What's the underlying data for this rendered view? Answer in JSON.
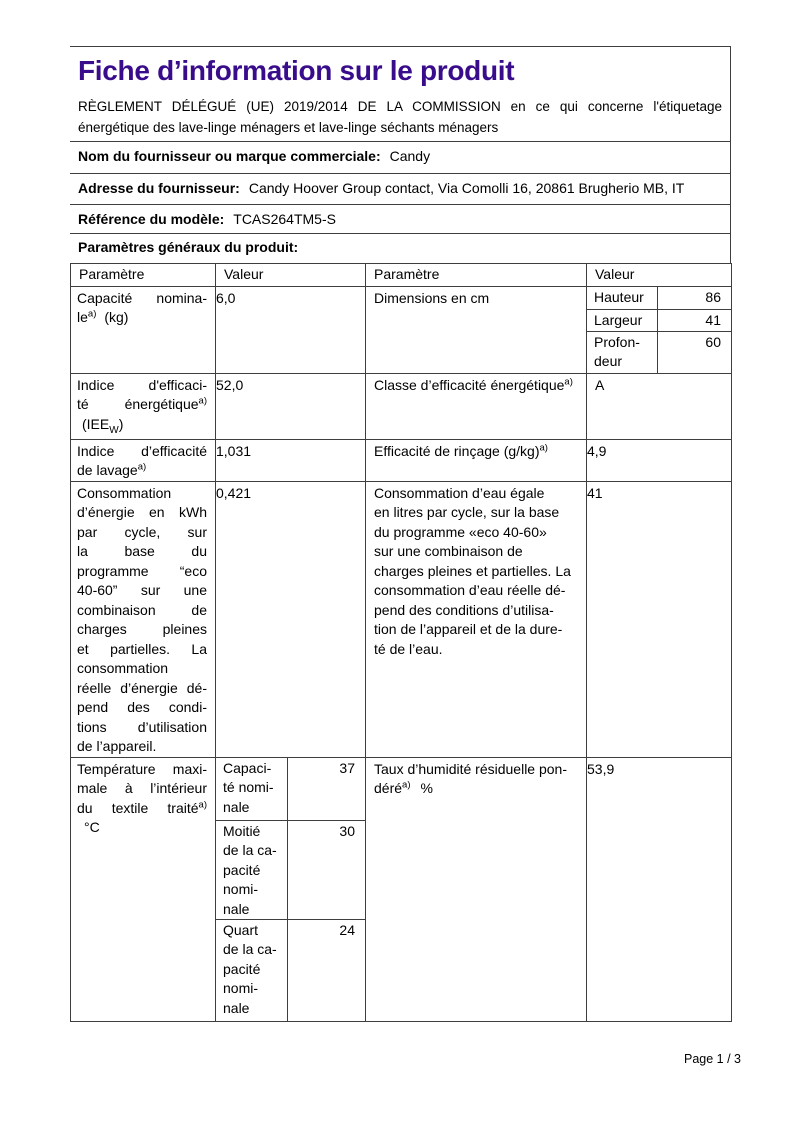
{
  "doc": {
    "title": "Fiche d’information sur le produit",
    "regulation_lines": [
      "RÈGLEMENT DÉLÉGUÉ (UE) 2019/2014 DE LA COMMISSION en ce qui concerne l'étiquetage",
      "énergétique des lave-linge ménagers et lave-linge séchants ménagers"
    ],
    "accent_color": "#390c8b",
    "page_number": "Page 1 / 3"
  },
  "supplier": {
    "name_label": "Nom du fournisseur ou marque commerciale:",
    "name_value": "Candy",
    "address_label": "Adresse du fournisseur:",
    "address_value": "Candy Hoover Group contact, Via Comolli 16, 20861 Brugherio MB, IT",
    "model_label": "Référence du modèle:",
    "model_value": "TCAS264TM5-S",
    "section_title": "Paramètres généraux du produit:"
  },
  "table": {
    "headers": [
      "Paramètre",
      "Valeur",
      "Paramètre",
      "Valeur"
    ],
    "capacity": {
      "l1": "Capacité nomina-",
      "l2_text": "le",
      "l2_sup": "a)",
      "l2_unit": "(kg)",
      "value": "6,0"
    },
    "dimensions": {
      "label": "Dimensions en cm",
      "height_label": "Hauteur",
      "height_value": "86",
      "width_label": "Largeur",
      "width_value": "41",
      "depth_label_lines": [
        "Profon-",
        "deur"
      ],
      "depth_value": "60"
    },
    "eei": {
      "l1": "Indice d'efficaci-",
      "l2_text": "té énergétique",
      "l2_sup": "a)",
      "l3_pre": "(IEE",
      "l3_sub": "W",
      "l3_post": ")",
      "value": "52,0"
    },
    "energy_class": {
      "label": "Classe d’efficacité énergétique",
      "sup": "a)",
      "value": "A"
    },
    "washing_index": {
      "l1": "Indice d’efficacité",
      "l2_text": "de lavage",
      "l2_sup": "a)",
      "value": "1,031"
    },
    "rinsing": {
      "label": "Efficacité de rinçage (g/kg)",
      "sup": "a)",
      "value": "4,9"
    },
    "energy_consumption": {
      "lines": [
        "Consommation",
        "d’énergie en kWh",
        "par cycle, sur",
        "la base du",
        "programme “eco",
        "40-60” sur une",
        "combinaison de",
        "charges pleines",
        "et partielles. La",
        "consommation",
        "réelle d’énergie dé-",
        "pend des condi-",
        "tions d’utilisation",
        "de l’appareil."
      ],
      "value": "0,421"
    },
    "water_consumption": {
      "lines": [
        "Consommation d’eau égale",
        "en litres par cycle, sur la base",
        "du programme «eco 40-60»",
        "sur une combinaison de",
        "charges pleines et partielles. La",
        "consommation d’eau réelle dé-",
        "pend des conditions d’utilisa-",
        "tion de l’appareil et de la dure-",
        "té de l’eau."
      ],
      "value": "41"
    },
    "max_temperature": {
      "l1": "Température maxi-",
      "l2": "male à l’intérieur",
      "l3_text": "du textile traité",
      "l3_sup": "a)",
      "l4": "°C",
      "nominal_label_lines": [
        "Capaci-",
        "té nomi-",
        "nale"
      ],
      "nominal_value": "37",
      "half_label_lines": [
        "Moitié",
        "de la ca-",
        "pacité",
        "nomi-",
        "nale"
      ],
      "half_value": "30",
      "quarter_label_lines": [
        "Quart",
        "de la ca-",
        "pacité",
        "nomi-",
        "nale"
      ],
      "quarter_value": "24"
    },
    "residual_humidity": {
      "l1": "Taux d’humidité résiduelle pon-",
      "l2_text": "déré",
      "l2_sup": "a)",
      "l2_unit": "%",
      "value": "53,9"
    }
  }
}
